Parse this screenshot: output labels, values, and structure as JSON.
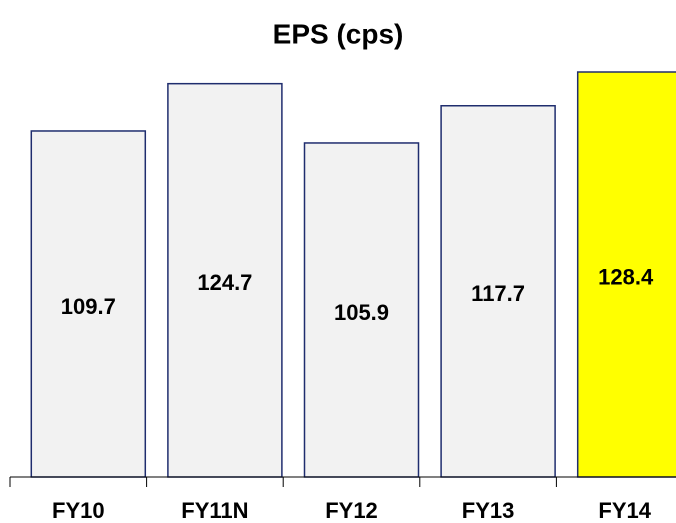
{
  "chart_data": {
    "type": "bar",
    "title": "EPS (cps)",
    "categories": [
      "FY10",
      "FY11N",
      "FY12",
      "FY13",
      "FY14"
    ],
    "values": [
      109.7,
      124.7,
      105.9,
      117.7,
      128.4
    ],
    "colors": [
      "#f2f2f2",
      "#f2f2f2",
      "#f2f2f2",
      "#f2f2f2",
      "#ffff00"
    ],
    "edge_color": "#1f2d6e"
  }
}
